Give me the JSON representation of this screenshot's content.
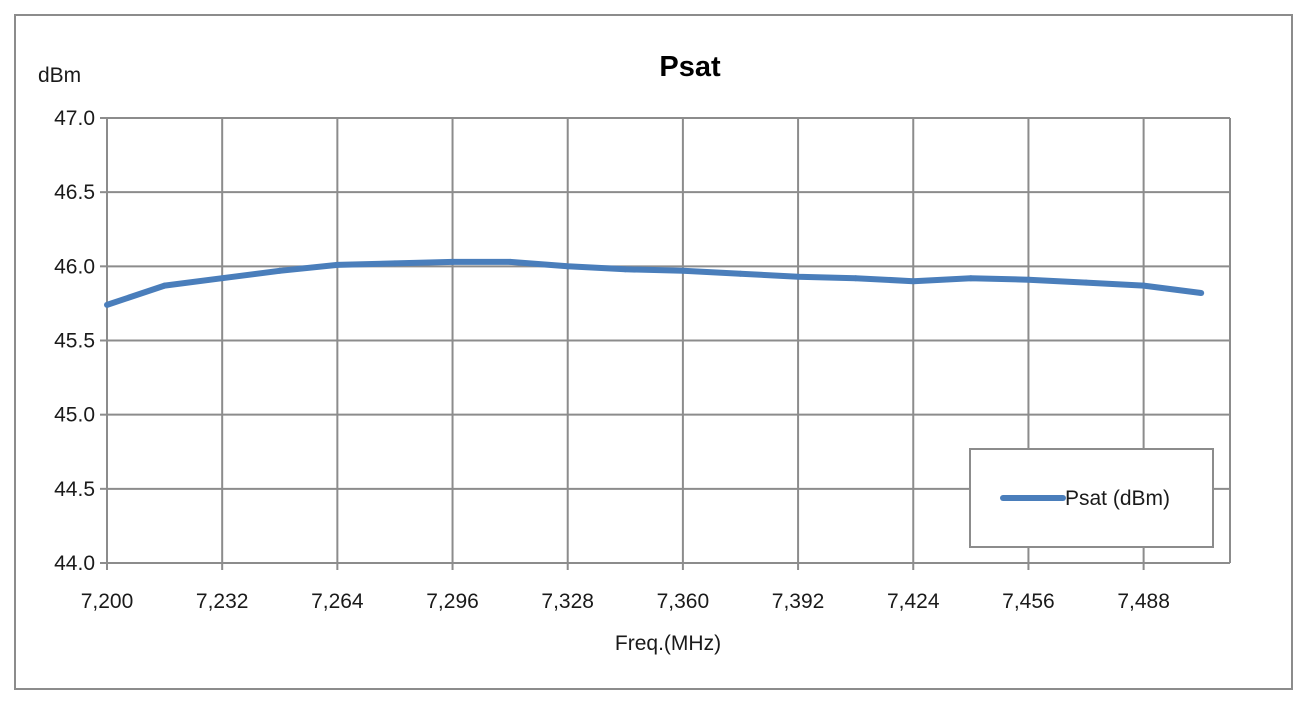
{
  "chart_data": {
    "type": "line",
    "title": "Psat",
    "xlabel": "Freq.(MHz)",
    "ylabel": "dBm",
    "xlim": [
      7200,
      7512
    ],
    "ylim": [
      44.0,
      47.0
    ],
    "x_ticks": [
      "7,200",
      "7,232",
      "7,264",
      "7,296",
      "7,328",
      "7,360",
      "7,392",
      "7,424",
      "7,456",
      "7,488"
    ],
    "x_tick_values": [
      7200,
      7232,
      7264,
      7296,
      7328,
      7360,
      7392,
      7424,
      7456,
      7488
    ],
    "y_ticks": [
      "44.0",
      "44.5",
      "45.0",
      "45.5",
      "46.0",
      "46.5",
      "47.0"
    ],
    "y_tick_values": [
      44.0,
      44.5,
      45.0,
      45.5,
      46.0,
      46.5,
      47.0
    ],
    "grid": true,
    "legend_position": "bottom-right",
    "series": [
      {
        "name": "Psat (dBm)",
        "color": "#4a7ebb",
        "x": [
          7200,
          7216,
          7232,
          7248,
          7264,
          7280,
          7296,
          7312,
          7328,
          7344,
          7360,
          7376,
          7392,
          7408,
          7424,
          7440,
          7456,
          7472,
          7488,
          7504
        ],
        "y": [
          45.74,
          45.87,
          45.92,
          45.97,
          46.01,
          46.02,
          46.03,
          46.03,
          46.0,
          45.98,
          45.97,
          45.95,
          45.93,
          45.92,
          45.9,
          45.92,
          45.91,
          45.89,
          45.87,
          45.82
        ]
      }
    ]
  }
}
